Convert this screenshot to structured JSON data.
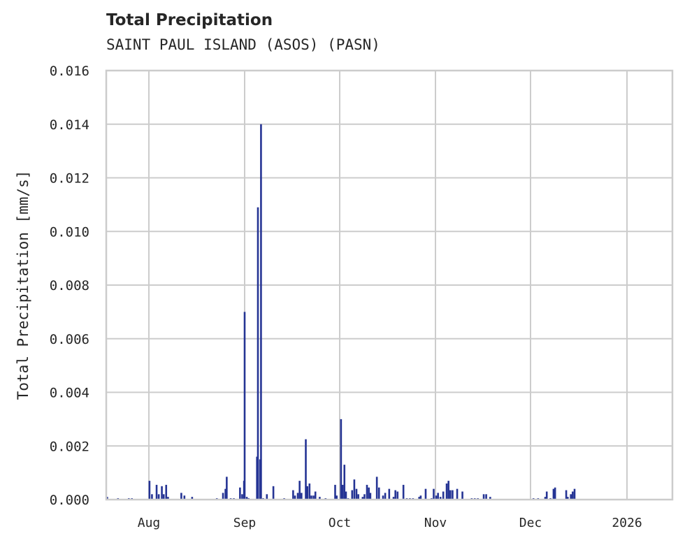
{
  "header": {
    "title": "Total Precipitation",
    "subtitle": "SAINT PAUL ISLAND (ASOS) (PASN)"
  },
  "colors": {
    "bar": "#253494",
    "grid": "#cccccc",
    "frame": "#cccccc",
    "text": "#262626"
  },
  "chart_data": {
    "type": "bar",
    "title": "Total Precipitation",
    "subtitle": "SAINT PAUL ISLAND (ASOS) (PASN)",
    "xlabel": "",
    "ylabel": "Total Precipitation [mm/s]",
    "ylim": [
      0,
      0.016
    ],
    "yticks": [
      "0.000",
      "0.002",
      "0.004",
      "0.006",
      "0.008",
      "0.010",
      "0.012",
      "0.014",
      "0.016"
    ],
    "xticks": [
      "Aug",
      "Sep",
      "Oct",
      "Nov",
      "Dec",
      "2026"
    ],
    "grid": true,
    "legend": null,
    "x_unit": "days since Aug 1 2025 (approx)",
    "series": [
      {
        "name": "Total Precipitation",
        "points": [
          [
            -13.5,
            0.0001
          ],
          [
            -10,
            5e-05
          ],
          [
            -6.5,
            5e-05
          ],
          [
            -5.5,
            5e-05
          ],
          [
            0.2,
            0.0007
          ],
          [
            1,
            0.0002
          ],
          [
            2.5,
            0.00055
          ],
          [
            3.2,
            0.0002
          ],
          [
            4.2,
            0.0005
          ],
          [
            4.8,
            0.0002
          ],
          [
            5.6,
            0.00055
          ],
          [
            6.2,
            0.0001
          ],
          [
            10.5,
            0.00025
          ],
          [
            11.5,
            0.00015
          ],
          [
            14,
            0.0001
          ],
          [
            22,
            5e-05
          ],
          [
            24,
            0.00025
          ],
          [
            24.8,
            0.0004
          ],
          [
            25.2,
            0.00085
          ],
          [
            26.5,
            5e-05
          ],
          [
            27.5,
            5e-05
          ],
          [
            29.5,
            0.00045
          ],
          [
            30.2,
            0.0002
          ],
          [
            30.8,
            0.0007
          ],
          [
            31,
            0.007
          ],
          [
            31.7,
            0.0001
          ],
          [
            32.3,
            5e-05
          ],
          [
            35,
            0.0016
          ],
          [
            35.3,
            0.0109
          ],
          [
            36,
            0.0015
          ],
          [
            36.3,
            0.014
          ],
          [
            37,
            5e-05
          ],
          [
            38.2,
            0.0002
          ],
          [
            40.3,
            0.0005
          ],
          [
            43.8,
            5e-05
          ],
          [
            46.7,
            0.00035
          ],
          [
            47.3,
            0.00015
          ],
          [
            48.2,
            0.00025
          ],
          [
            48.8,
            0.0007
          ],
          [
            49.4,
            0.00025
          ],
          [
            50.8,
            0.00225
          ],
          [
            51.3,
            0.0005
          ],
          [
            52,
            0.0006
          ],
          [
            52.6,
            0.00015
          ],
          [
            53.3,
            0.00015
          ],
          [
            53.9,
            0.0003
          ],
          [
            55.3,
            0.0001
          ],
          [
            57.2,
            5e-05
          ],
          [
            60.3,
            0.00055
          ],
          [
            60.8,
            0.00015
          ],
          [
            62.2,
            0.003
          ],
          [
            62.7,
            0.00055
          ],
          [
            63.3,
            0.0013
          ],
          [
            63.8,
            0.0003
          ],
          [
            64.5,
            5e-05
          ],
          [
            65.8,
            0.00035
          ],
          [
            66.5,
            0.00075
          ],
          [
            67.2,
            0.0004
          ],
          [
            67.8,
            0.0002
          ],
          [
            69.2,
            0.0001
          ],
          [
            69.8,
            0.0002
          ],
          [
            70.6,
            0.00055
          ],
          [
            71.2,
            0.00045
          ],
          [
            71.7,
            0.00025
          ],
          [
            73.8,
            0.00085
          ],
          [
            74.5,
            0.00045
          ],
          [
            75.8,
            0.00015
          ],
          [
            76.5,
            0.00025
          ],
          [
            77.8,
            0.0004
          ],
          [
            79.2,
            0.0001
          ],
          [
            79.8,
            0.00035
          ],
          [
            80.5,
            0.0003
          ],
          [
            82.4,
            0.00055
          ],
          [
            83.5,
            5e-05
          ],
          [
            84.5,
            5e-05
          ],
          [
            85.5,
            5e-05
          ],
          [
            87.5,
            0.0001
          ],
          [
            88,
            0.00015
          ],
          [
            89.6,
            0.0004
          ],
          [
            91.5,
            5e-05
          ],
          [
            92.2,
            0.0004
          ],
          [
            93,
            0.00015
          ],
          [
            93.6,
            0.00025
          ],
          [
            94.4,
            0.0001
          ],
          [
            95.3,
            0.0003
          ],
          [
            96.4,
            0.0006
          ],
          [
            97,
            0.0007
          ],
          [
            97.6,
            0.00035
          ],
          [
            98.3,
            0.00035
          ],
          [
            99.8,
            0.0004
          ],
          [
            101.5,
            0.0003
          ],
          [
            104.5,
            5e-05
          ],
          [
            105.5,
            5e-05
          ],
          [
            106.5,
            5e-05
          ],
          [
            108.4,
            0.0002
          ],
          [
            109.2,
            0.0002
          ],
          [
            110.5,
            0.0001
          ],
          [
            124.5,
            5e-05
          ],
          [
            126,
            5e-05
          ],
          [
            128.3,
            0.0001
          ],
          [
            128.8,
            0.0003
          ],
          [
            130,
            5e-05
          ],
          [
            131,
            0.0004
          ],
          [
            131.5,
            0.00045
          ],
          [
            135.1,
            0.00035
          ],
          [
            135.6,
            0.0001
          ],
          [
            136.6,
            0.0002
          ],
          [
            137.2,
            0.0003
          ],
          [
            137.8,
            0.0004
          ]
        ]
      }
    ]
  },
  "axes": {
    "ylabel": "Total Precipitation [mm/s]",
    "yticks": [
      "0.000",
      "0.002",
      "0.004",
      "0.006",
      "0.008",
      "0.010",
      "0.012",
      "0.014",
      "0.016"
    ],
    "xticks": [
      "Aug",
      "Sep",
      "Oct",
      "Nov",
      "Dec",
      "2026"
    ]
  }
}
